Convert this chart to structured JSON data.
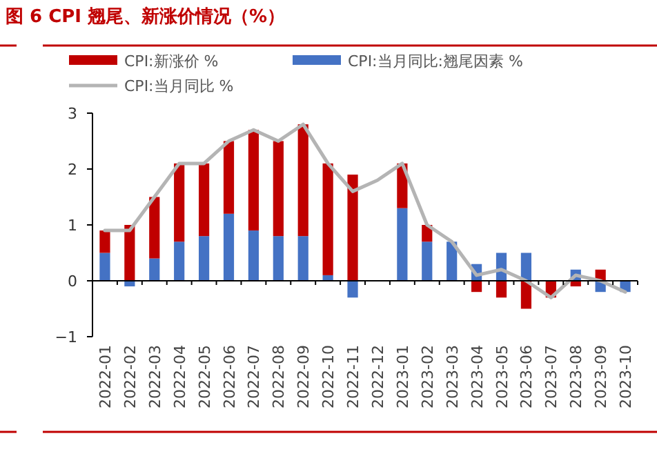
{
  "chart_data": {
    "type": "bar",
    "title": "图 6 CPI 翘尾、新涨价情况（%）",
    "categories": [
      "2022-01",
      "2022-02",
      "2022-03",
      "2022-04",
      "2022-05",
      "2022-06",
      "2022-07",
      "2022-08",
      "2022-09",
      "2022-10",
      "2022-11",
      "2022-12",
      "2023-01",
      "2023-02",
      "2023-03",
      "2023-04",
      "2023-05",
      "2023-06",
      "2023-07",
      "2023-08",
      "2023-09",
      "2023-10"
    ],
    "stacked": true,
    "series": [
      {
        "name": "CPI:当月同比:翘尾因素 %",
        "color": "#4472c4",
        "values": [
          0.5,
          -0.1,
          0.4,
          0.7,
          0.8,
          1.2,
          0.9,
          0.8,
          0.8,
          0.1,
          -0.3,
          null,
          1.3,
          0.7,
          0.7,
          0.3,
          0.5,
          0.5,
          null,
          0.2,
          -0.2,
          -0.2
        ]
      },
      {
        "name": "CPI:新涨价 %",
        "color": "#c00000",
        "values": [
          0.4,
          1.0,
          1.1,
          1.4,
          1.3,
          1.3,
          1.8,
          1.7,
          2.0,
          2.0,
          1.9,
          null,
          0.8,
          0.3,
          null,
          -0.2,
          -0.3,
          -0.5,
          -0.3,
          -0.1,
          0.2,
          null
        ]
      },
      {
        "name": "CPI:当月同比 %",
        "type": "line",
        "color": "#b4b4b4",
        "values": [
          0.9,
          0.9,
          1.5,
          2.1,
          2.1,
          2.5,
          2.7,
          2.5,
          2.8,
          2.1,
          1.6,
          1.8,
          2.1,
          1.0,
          0.7,
          0.1,
          0.2,
          0.0,
          -0.3,
          0.1,
          0.0,
          -0.2
        ]
      }
    ],
    "ylim": [
      -1,
      3
    ],
    "yticks": [
      -1,
      0,
      1,
      2,
      3
    ],
    "grid": false,
    "legend": "top",
    "ref_lines": [
      {
        "axis": "y",
        "value": 0,
        "color": "#000000",
        "line_style": "solid"
      }
    ]
  }
}
